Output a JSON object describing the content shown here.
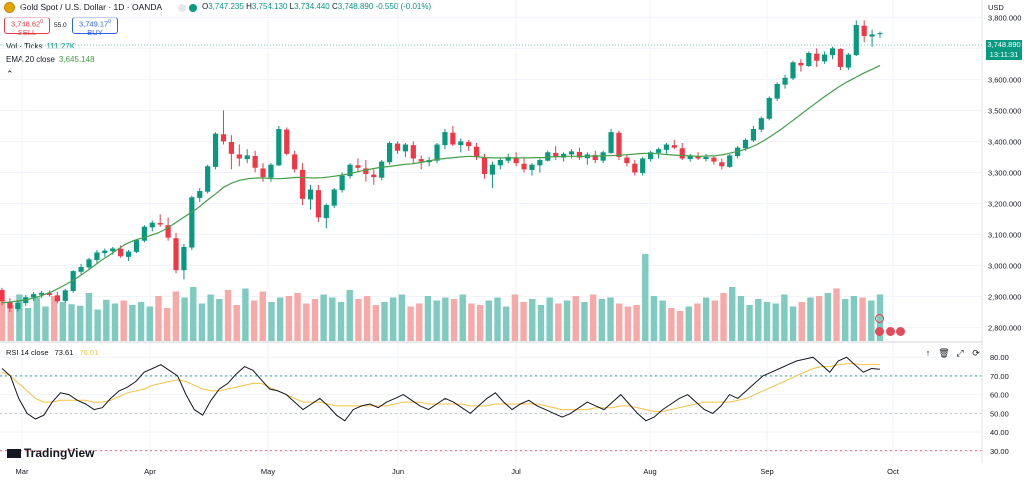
{
  "header": {
    "symbol_title": "Gold Spot / U.S. Dollar · 1D · OANDA",
    "open_label": "O",
    "open": "3,747.235",
    "high_label": "H",
    "high": "3,754.130",
    "low_label": "L",
    "low": "3,734.440",
    "close_label": "C",
    "close": "3,748.890",
    "change": "-0.550 (-0.01%)",
    "sell_price": "3,748.62",
    "sell_price_sup": "0",
    "sell_label": "SELL",
    "spread": "55.0",
    "buy_price": "3,749.17",
    "buy_price_sup": "0",
    "buy_label": "BUY"
  },
  "indicators": {
    "vol_name": "Vol · Ticks",
    "vol_value": "111.27K",
    "ema_name": "EMA 20 close",
    "ema_value": "3,645.148",
    "rsi_name": "RSI 14 close",
    "rsi_value": "73.61",
    "rsi_ma_value": "76.01"
  },
  "price_axis": {
    "currency": "USD",
    "ticks": [
      "3,800.000",
      "3,700.000",
      "3,600.000",
      "3,500.000",
      "3,400.000",
      "3,300.000",
      "3,200.000",
      "3,100.000",
      "3,000.000",
      "2,900.000",
      "2,800.000"
    ],
    "last_price": "3,748.890",
    "countdown": "13:11:31"
  },
  "rsi_axis": {
    "ticks": [
      "80.00",
      "70.00",
      "60.00",
      "50.00",
      "40.00",
      "30.00"
    ]
  },
  "time_axis": {
    "labels": [
      "Mar",
      "Apr",
      "May",
      "Jun",
      "Jul",
      "Aug",
      "Sep",
      "Oct"
    ]
  },
  "brand": "TradingView",
  "colors": {
    "up": "#089981",
    "down": "#f23645",
    "ema": "#43a047",
    "rsi": "#131722",
    "rsi_ma": "#f5c242",
    "vol_up": "#7fcbc0",
    "vol_down": "#f7a9a7"
  },
  "chart_data": {
    "type": "candlestick",
    "series_ohlc": [
      [
        2921,
        2928,
        2872,
        2885
      ],
      [
        2883,
        2895,
        2850,
        2862
      ],
      [
        2860,
        2888,
        2852,
        2880
      ],
      [
        2879,
        2905,
        2870,
        2898
      ],
      [
        2897,
        2915,
        2885,
        2908
      ],
      [
        2906,
        2918,
        2895,
        2912
      ],
      [
        2911,
        2920,
        2900,
        2905
      ],
      [
        2904,
        2915,
        2878,
        2885
      ],
      [
        2886,
        2925,
        2880,
        2920
      ],
      [
        2918,
        2985,
        2912,
        2982
      ],
      [
        2980,
        3005,
        2970,
        2995
      ],
      [
        2994,
        3025,
        2985,
        3020
      ],
      [
        3018,
        3050,
        3008,
        3042
      ],
      [
        3040,
        3055,
        3028,
        3048
      ],
      [
        3046,
        3060,
        3035,
        3055
      ],
      [
        3054,
        3065,
        3025,
        3030
      ],
      [
        3028,
        3050,
        3015,
        3045
      ],
      [
        3044,
        3085,
        3040,
        3082
      ],
      [
        3080,
        3130,
        3075,
        3125
      ],
      [
        3123,
        3145,
        3110,
        3138
      ],
      [
        3137,
        3165,
        3125,
        3132
      ],
      [
        3130,
        3155,
        3080,
        3090
      ],
      [
        3088,
        3105,
        2975,
        2985
      ],
      [
        2985,
        3070,
        2955,
        3060
      ],
      [
        3058,
        3225,
        3050,
        3220
      ],
      [
        3218,
        3250,
        3205,
        3240
      ],
      [
        3238,
        3325,
        3232,
        3320
      ],
      [
        3318,
        3430,
        3310,
        3425
      ],
      [
        3423,
        3500,
        3390,
        3400
      ],
      [
        3398,
        3420,
        3310,
        3360
      ],
      [
        3358,
        3390,
        3320,
        3345
      ],
      [
        3343,
        3375,
        3330,
        3355
      ],
      [
        3353,
        3370,
        3300,
        3315
      ],
      [
        3313,
        3330,
        3270,
        3285
      ],
      [
        3283,
        3330,
        3270,
        3325
      ],
      [
        3323,
        3450,
        3320,
        3440
      ],
      [
        3438,
        3445,
        3355,
        3360
      ],
      [
        3358,
        3370,
        3300,
        3310
      ],
      [
        3308,
        3330,
        3195,
        3215
      ],
      [
        3213,
        3260,
        3180,
        3245
      ],
      [
        3243,
        3260,
        3140,
        3155
      ],
      [
        3153,
        3200,
        3120,
        3195
      ],
      [
        3193,
        3250,
        3185,
        3245
      ],
      [
        3243,
        3300,
        3235,
        3290
      ],
      [
        3288,
        3330,
        3280,
        3325
      ],
      [
        3323,
        3345,
        3300,
        3315
      ],
      [
        3313,
        3340,
        3270,
        3295
      ],
      [
        3293,
        3310,
        3260,
        3285
      ],
      [
        3283,
        3340,
        3275,
        3335
      ],
      [
        3333,
        3400,
        3325,
        3395
      ],
      [
        3393,
        3400,
        3360,
        3370
      ],
      [
        3368,
        3395,
        3350,
        3390
      ],
      [
        3388,
        3400,
        3330,
        3345
      ],
      [
        3343,
        3355,
        3310,
        3335
      ],
      [
        3333,
        3350,
        3320,
        3340
      ],
      [
        3338,
        3395,
        3330,
        3390
      ],
      [
        3388,
        3440,
        3375,
        3430
      ],
      [
        3428,
        3450,
        3385,
        3390
      ],
      [
        3388,
        3410,
        3365,
        3400
      ],
      [
        3398,
        3405,
        3370,
        3385
      ],
      [
        3383,
        3395,
        3340,
        3350
      ],
      [
        3348,
        3360,
        3280,
        3295
      ],
      [
        3293,
        3335,
        3250,
        3325
      ],
      [
        3323,
        3345,
        3310,
        3340
      ],
      [
        3338,
        3360,
        3330,
        3350
      ],
      [
        3348,
        3365,
        3320,
        3330
      ],
      [
        3328,
        3345,
        3300,
        3310
      ],
      [
        3308,
        3330,
        3290,
        3325
      ],
      [
        3323,
        3345,
        3300,
        3340
      ],
      [
        3338,
        3370,
        3335,
        3365
      ],
      [
        3363,
        3385,
        3340,
        3350
      ],
      [
        3348,
        3365,
        3335,
        3360
      ],
      [
        3358,
        3375,
        3345,
        3368
      ],
      [
        3366,
        3380,
        3340,
        3348
      ],
      [
        3346,
        3365,
        3325,
        3358
      ],
      [
        3356,
        3370,
        3330,
        3340
      ],
      [
        3338,
        3370,
        3330,
        3365
      ],
      [
        3363,
        3440,
        3360,
        3430
      ],
      [
        3428,
        3435,
        3340,
        3350
      ],
      [
        3348,
        3355,
        3320,
        3330
      ],
      [
        3328,
        3340,
        3290,
        3300
      ],
      [
        3298,
        3350,
        3290,
        3345
      ],
      [
        3343,
        3370,
        3335,
        3365
      ],
      [
        3363,
        3380,
        3345,
        3375
      ],
      [
        3373,
        3395,
        3360,
        3390
      ],
      [
        3388,
        3405,
        3375,
        3380
      ],
      [
        3378,
        3395,
        3340,
        3345
      ],
      [
        3343,
        3360,
        3335,
        3355
      ],
      [
        3353,
        3365,
        3340,
        3345
      ],
      [
        3343,
        3360,
        3335,
        3350
      ],
      [
        3348,
        3355,
        3325,
        3335
      ],
      [
        3333,
        3345,
        3310,
        3320
      ],
      [
        3318,
        3360,
        3315,
        3355
      ],
      [
        3353,
        3385,
        3345,
        3380
      ],
      [
        3378,
        3410,
        3370,
        3405
      ],
      [
        3403,
        3450,
        3398,
        3440
      ],
      [
        3438,
        3480,
        3430,
        3475
      ],
      [
        3473,
        3545,
        3468,
        3540
      ],
      [
        3538,
        3590,
        3530,
        3585
      ],
      [
        3583,
        3615,
        3570,
        3605
      ],
      [
        3603,
        3660,
        3598,
        3655
      ],
      [
        3653,
        3665,
        3625,
        3645
      ],
      [
        3643,
        3690,
        3640,
        3685
      ],
      [
        3683,
        3700,
        3640,
        3660
      ],
      [
        3658,
        3690,
        3650,
        3680
      ],
      [
        3678,
        3705,
        3665,
        3700
      ],
      [
        3698,
        3700,
        3630,
        3640
      ],
      [
        3638,
        3685,
        3630,
        3680
      ],
      [
        3678,
        3790,
        3675,
        3775
      ],
      [
        3773,
        3790,
        3720,
        3740
      ],
      [
        3738,
        3760,
        3705,
        3745
      ],
      [
        3747,
        3754,
        3734,
        3749
      ]
    ],
    "ema": [
      2880,
      2882,
      2886,
      2890,
      2896,
      2905,
      2915,
      2928,
      2942,
      2958,
      2976,
      2995,
      3015,
      3032,
      3050,
      3068,
      3080,
      3088,
      3096,
      3105,
      3118,
      3135,
      3153,
      3170,
      3188,
      3210,
      3230,
      3252,
      3266,
      3275,
      3280,
      3282,
      3282,
      3280,
      3280,
      3282,
      3284,
      3283,
      3282,
      3283,
      3286,
      3290,
      3294,
      3300,
      3306,
      3311,
      3316,
      3319,
      3322,
      3326,
      3328,
      3332,
      3337,
      3342,
      3345,
      3348,
      3350,
      3352,
      3350,
      3348,
      3347,
      3347,
      3347,
      3347,
      3347,
      3348,
      3348,
      3350,
      3351,
      3352,
      3352,
      3352,
      3353,
      3353,
      3354,
      3355,
      3357,
      3359,
      3361,
      3362,
      3360,
      3358,
      3356,
      3354,
      3353,
      3352,
      3353,
      3354,
      3358,
      3364,
      3370,
      3378,
      3390,
      3405,
      3422,
      3440,
      3460,
      3480,
      3500,
      3520,
      3540,
      3558,
      3576,
      3592,
      3606,
      3620,
      3632,
      3645
    ],
    "volume": [
      55,
      48,
      62,
      44,
      58,
      46,
      60,
      52,
      49,
      47,
      64,
      42,
      55,
      50,
      54,
      48,
      52,
      46,
      60,
      44,
      66,
      58,
      72,
      50,
      62,
      56,
      68,
      48,
      70,
      54,
      66,
      52,
      58,
      60,
      64,
      50,
      56,
      62,
      58,
      52,
      68,
      56,
      60,
      48,
      52,
      58,
      62,
      46,
      50,
      60,
      54,
      58,
      56,
      62,
      50,
      48,
      54,
      58,
      46,
      62,
      52,
      56,
      48,
      58,
      50,
      54,
      60,
      52,
      62,
      56,
      58,
      50,
      46,
      48,
      116,
      60,
      54,
      44,
      40,
      46,
      50,
      58,
      54,
      64,
      72,
      60,
      48,
      56,
      52,
      50,
      62,
      46,
      52,
      58,
      60,
      64,
      70,
      56,
      60,
      58,
      54,
      62
    ],
    "rsi": [
      74,
      70,
      58,
      50,
      47,
      49,
      56,
      61,
      60,
      57,
      55,
      52,
      53,
      58,
      62,
      64,
      67,
      72,
      74,
      76,
      73,
      70,
      60,
      52,
      49,
      57,
      63,
      66,
      71,
      75,
      73,
      68,
      63,
      62,
      60,
      56,
      52,
      55,
      58,
      54,
      49,
      46,
      52,
      54,
      55,
      53,
      56,
      58,
      60,
      57,
      54,
      52,
      55,
      58,
      56,
      53,
      50,
      54,
      58,
      61,
      56,
      52,
      55,
      57,
      54,
      52,
      50,
      48,
      50,
      53,
      56,
      54,
      52,
      56,
      60,
      55,
      50,
      46,
      48,
      52,
      55,
      58,
      60,
      56,
      52,
      50,
      54,
      60,
      58,
      62,
      66,
      70,
      72,
      74,
      76,
      78,
      79,
      80,
      76,
      72,
      78,
      80,
      76,
      72,
      74,
      73.61
    ],
    "rsi_ma": [
      72,
      70,
      66,
      62,
      58,
      56,
      56,
      57,
      57,
      57,
      57,
      56,
      56,
      57,
      59,
      61,
      62,
      63,
      65,
      66,
      67,
      68,
      67,
      65,
      63,
      62,
      62,
      63,
      64,
      65,
      66,
      66,
      64,
      62,
      60,
      58,
      56,
      56,
      56,
      55,
      54,
      54,
      54,
      54,
      54,
      54,
      54,
      55,
      56,
      56,
      56,
      55,
      55,
      55,
      55,
      55,
      54,
      54,
      54,
      55,
      55,
      55,
      55,
      55,
      55,
      54,
      53,
      52,
      52,
      52,
      52,
      53,
      53,
      53,
      54,
      54,
      53,
      52,
      51,
      51,
      52,
      53,
      54,
      55,
      56,
      56,
      56,
      56,
      57,
      58,
      60,
      62,
      64,
      66,
      68,
      70,
      72,
      74,
      75,
      75,
      76,
      76.5,
      76.5,
      76,
      76.2,
      76.01
    ],
    "rsi_levels": [
      70,
      50,
      30
    ],
    "price_range": [
      2760,
      3830
    ],
    "rsi_range": [
      24,
      86
    ]
  }
}
